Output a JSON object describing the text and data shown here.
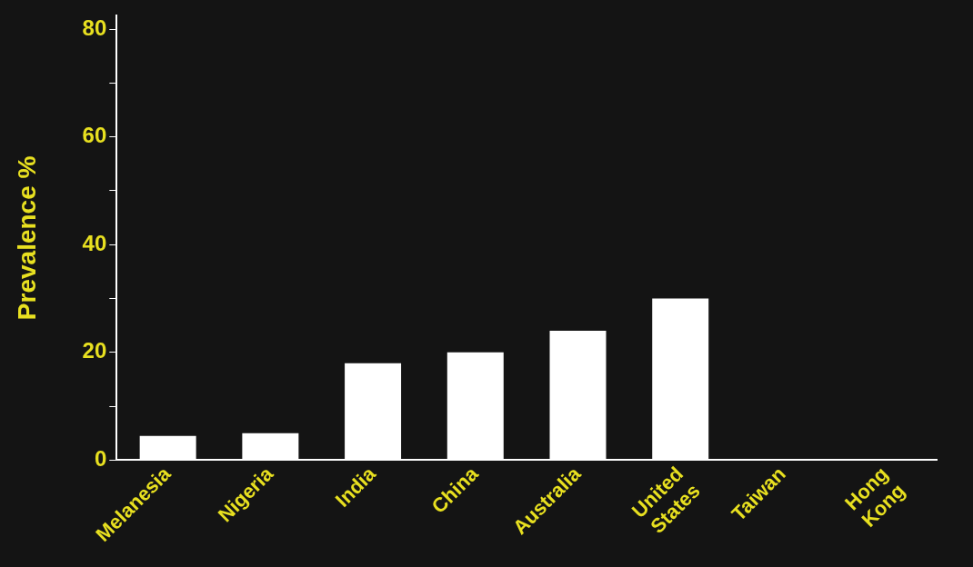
{
  "chart_data": {
    "type": "bar",
    "ylabel": "Prevalence %",
    "categories": [
      "Melanesia",
      "Nigeria",
      "India",
      "China",
      "Australia",
      "United States",
      "Taiwan",
      "Hong Kong"
    ],
    "values": [
      4.5,
      5,
      18,
      20,
      24,
      30,
      null,
      null
    ],
    "color": "#ffffff",
    "ylim": [
      0,
      82.5
    ],
    "yticks": [
      0,
      {
        "value": 10,
        "label": null
      },
      20,
      {
        "value": 30,
        "label": null
      },
      40,
      {
        "value": 50,
        "label": null
      },
      60,
      {
        "value": 70,
        "label": null
      },
      80
    ],
    "grid": false,
    "legend": false
  }
}
